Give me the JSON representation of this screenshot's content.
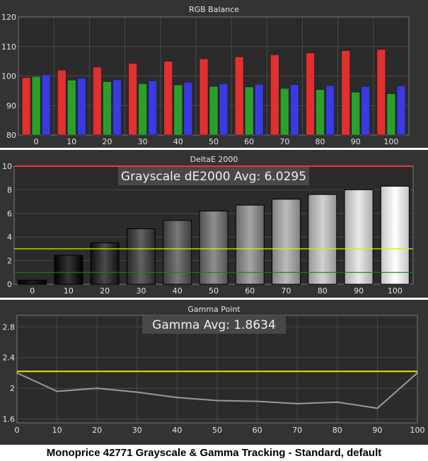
{
  "caption": "Monoprice 42771 Grayscale & Gamma Tracking - Standard, default",
  "colors": {
    "background": "#333333",
    "plot_area": "#2b2b2b",
    "grid": "#4a4a4a",
    "text": "#e6e6e6",
    "red": "#e03030",
    "green": "#2aa02a",
    "blue": "#3a3ae0",
    "yellow": "#e6e600",
    "dark_green": "#207a20",
    "limit_red": "#ff3030",
    "gamma_line": "#9a9a9a"
  },
  "chart_data": [
    {
      "type": "bar",
      "title": "RGB Balance",
      "categories": [
        "0",
        "10",
        "20",
        "30",
        "40",
        "50",
        "60",
        "70",
        "80",
        "90",
        "100"
      ],
      "ylim": [
        80,
        120
      ],
      "yticks": [
        80,
        90,
        100,
        110,
        120
      ],
      "grid": true,
      "series": [
        {
          "key": "red",
          "values": [
            99.5,
            102,
            103,
            104.3,
            105,
            105.8,
            106.5,
            107.2,
            107.8,
            108.6,
            109
          ]
        },
        {
          "key": "green",
          "values": [
            99.8,
            98.6,
            98.1,
            97.4,
            97,
            96.5,
            96.3,
            95.8,
            95.4,
            94.5,
            94
          ]
        },
        {
          "key": "blue",
          "values": [
            100.5,
            99.3,
            98.7,
            98.4,
            97.9,
            97.4,
            97.2,
            97.1,
            96.8,
            96.5,
            96.7
          ]
        }
      ]
    },
    {
      "type": "bar",
      "title": "DeltaE 2000",
      "annotation": "Grayscale dE2000 Avg: 6.0295",
      "categories": [
        "0",
        "10",
        "20",
        "30",
        "40",
        "50",
        "60",
        "70",
        "80",
        "90",
        "100"
      ],
      "values": [
        0.35,
        2.45,
        3.5,
        4.7,
        5.4,
        6.2,
        6.7,
        7.2,
        7.6,
        8.0,
        8.3
      ],
      "ylim": [
        0,
        10
      ],
      "yticks": [
        0,
        2,
        4,
        6,
        8,
        10
      ],
      "reference_lines": [
        {
          "y": 3,
          "key": "yellow"
        },
        {
          "y": 1,
          "key": "dark_green"
        },
        {
          "y": 10,
          "key": "limit_red"
        }
      ],
      "grid": true
    },
    {
      "type": "line",
      "title": "Gamma Point",
      "annotation": "Gamma Avg: 1.8634",
      "x": [
        0,
        10,
        20,
        30,
        40,
        50,
        60,
        70,
        80,
        90,
        100
      ],
      "values": [
        2.2,
        1.96,
        2.0,
        1.95,
        1.88,
        1.84,
        1.83,
        1.8,
        1.82,
        1.74,
        2.2
      ],
      "target": 2.22,
      "xlim": [
        0,
        100
      ],
      "ylim": [
        1.55,
        2.95
      ],
      "xticks": [
        0,
        10,
        20,
        30,
        40,
        50,
        60,
        70,
        80,
        90,
        100
      ],
      "yticks": [
        1.6,
        2,
        2.4,
        2.8
      ],
      "grid": true
    }
  ]
}
